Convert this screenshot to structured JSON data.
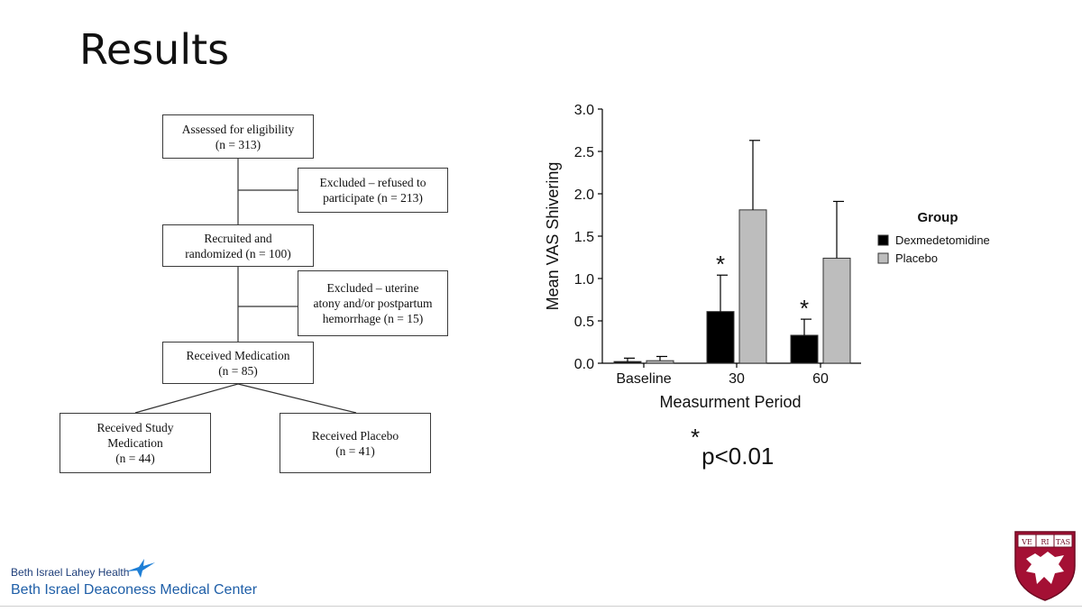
{
  "slide": {
    "title": "Results"
  },
  "flowchart": {
    "assessed": {
      "line1": "Assessed for eligibility",
      "line2": "(n = 313)"
    },
    "excluded_refused": {
      "line1": "Excluded – refused to",
      "line2": "participate (n = 213)"
    },
    "recruited": {
      "line1": "Recruited and",
      "line2": "randomized (n = 100)"
    },
    "excluded_atony": {
      "line1": "Excluded – uterine",
      "line2": "atony and/or postpartum",
      "line3": "hemorrhage (n = 15)"
    },
    "received_medication": {
      "line1": "Received Medication",
      "line2": "(n = 85)"
    },
    "study_medication": {
      "line1": "Received Study",
      "line2": "Medication",
      "line3": "(n = 44)"
    },
    "placebo": {
      "line1": "Received Placebo",
      "line2": "(n = 41)"
    }
  },
  "chart_data": {
    "type": "bar",
    "categories": [
      "Baseline",
      "30",
      "60"
    ],
    "series": [
      {
        "name": "Dexmedetomidine",
        "color": "#000000",
        "values": [
          0.02,
          0.61,
          0.33
        ],
        "error_upper": [
          0.06,
          1.04,
          0.52
        ],
        "significant": [
          false,
          true,
          true
        ]
      },
      {
        "name": "Placebo",
        "color": "#bdbdbd",
        "values": [
          0.03,
          1.81,
          1.24
        ],
        "error_upper": [
          0.08,
          2.63,
          1.91
        ],
        "significant": [
          false,
          false,
          false
        ]
      }
    ],
    "xlabel": "Measurment Period",
    "ylabel": "Mean VAS Shivering",
    "ylim": [
      0,
      3.0
    ],
    "yticks": [
      "0.0",
      "0.5",
      "1.0",
      "1.5",
      "2.0",
      "2.5",
      "3.0"
    ],
    "legend": {
      "title": "Group",
      "placement": "right"
    },
    "significance_marker": "*",
    "footnote_marker": "*",
    "footnote": "p<0.01"
  },
  "branding": {
    "network": "Beth Israel Lahey Health",
    "center": "Beth Israel Deaconess Medical Center",
    "seal_text": [
      "VE",
      "RI",
      "TAS"
    ]
  }
}
